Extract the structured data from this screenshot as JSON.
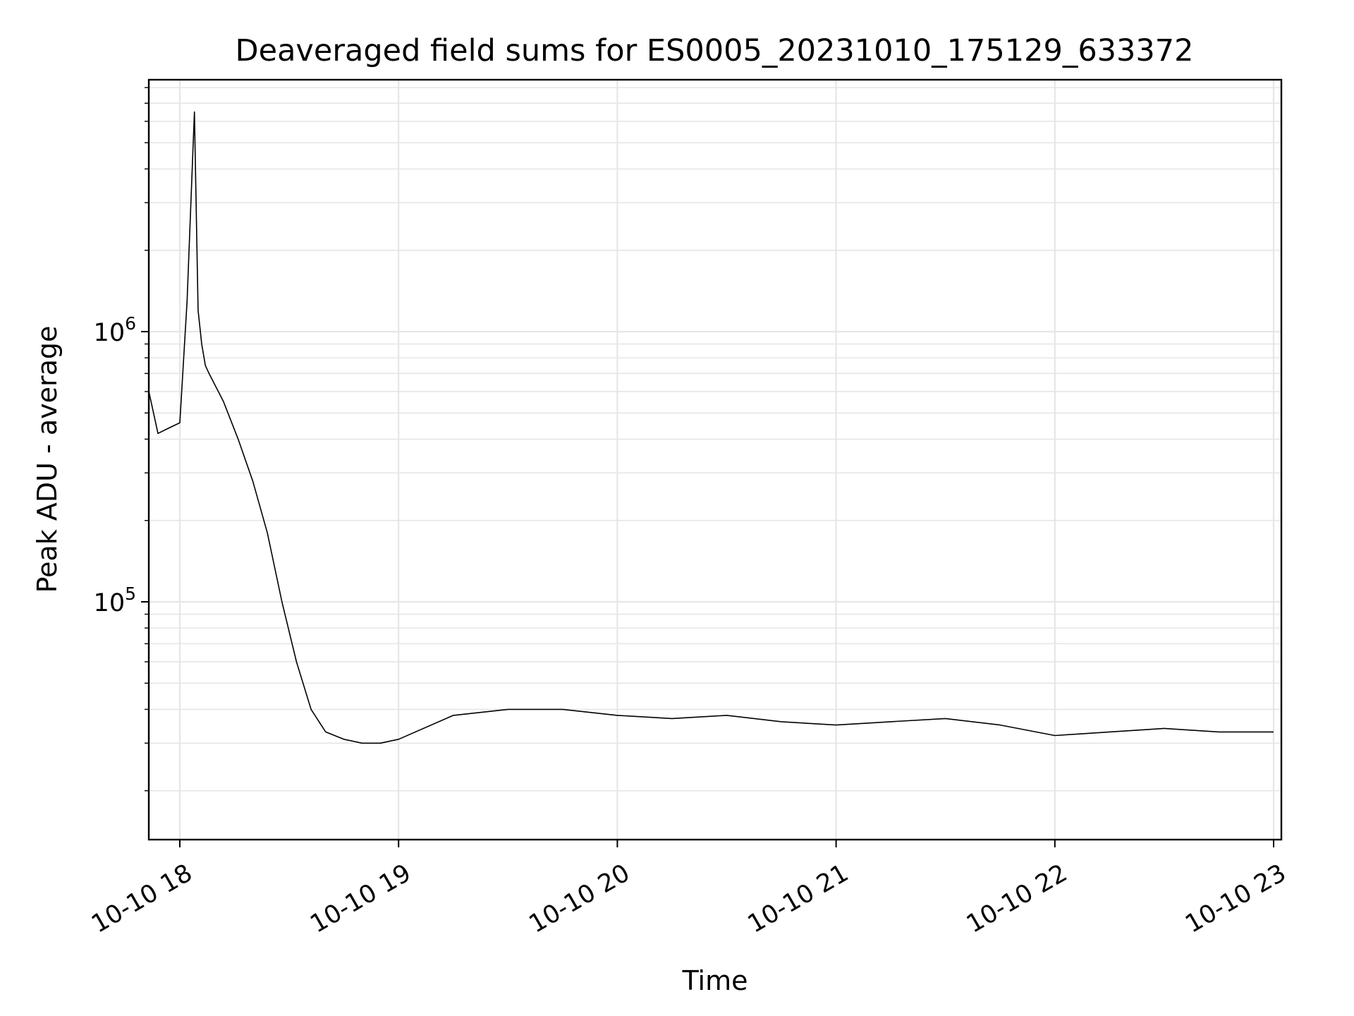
{
  "chart_data": {
    "type": "line",
    "title": "Deaveraged field sums for ES0005_20231010_175129_633372",
    "xlabel": "Time",
    "ylabel": "Peak ADU - average",
    "yscale": "log",
    "ylim": [
      15000,
      8500000
    ],
    "xlim": [
      "2023-10-10 17:51:29",
      "2023-10-11 23:01:00"
    ],
    "grid": true,
    "x_ticks": [
      {
        "value": "2023-10-10 18:00",
        "label": "10-10 18"
      },
      {
        "value": "2023-10-10 19:00",
        "label": "10-10 19"
      },
      {
        "value": "2023-10-10 20:00",
        "label": "10-10 20"
      },
      {
        "value": "2023-10-10 21:00",
        "label": "10-10 21"
      },
      {
        "value": "2023-10-10 22:00",
        "label": "10-10 22"
      },
      {
        "value": "2023-10-10 23:00",
        "label": "10-10 23"
      }
    ],
    "y_ticks": [
      {
        "value": 100000,
        "base": "10",
        "exp": "5"
      },
      {
        "value": 1000000,
        "base": "10",
        "exp": "6"
      }
    ],
    "line_color": "#000000",
    "series": [
      {
        "x": [
          "2023-10-10 17:51:30",
          "2023-10-10 17:54:00",
          "2023-10-10 17:57:00",
          "2023-10-10 18:00:00",
          "2023-10-10 18:02:00",
          "2023-10-10 18:04:00",
          "2023-10-10 18:05:00",
          "2023-10-10 18:06:00",
          "2023-10-10 18:07:00",
          "2023-10-10 18:08:00",
          "2023-10-10 18:12:00",
          "2023-10-10 18:16:00",
          "2023-10-10 18:20:00",
          "2023-10-10 18:24:00",
          "2023-10-10 18:28:00",
          "2023-10-10 18:32:00",
          "2023-10-10 18:36:00",
          "2023-10-10 18:40:00",
          "2023-10-10 18:45:00",
          "2023-10-10 18:50:00",
          "2023-10-10 18:55:00",
          "2023-10-10 19:00:00",
          "2023-10-10 19:15:00",
          "2023-10-10 19:30:00",
          "2023-10-10 19:45:00",
          "2023-10-10 20:00:00",
          "2023-10-10 20:15:00",
          "2023-10-10 20:30:00",
          "2023-10-10 20:45:00",
          "2023-10-10 21:00:00",
          "2023-10-10 21:15:00",
          "2023-10-10 21:30:00",
          "2023-10-10 21:45:00",
          "2023-10-10 22:00:00",
          "2023-10-10 22:15:00",
          "2023-10-10 22:30:00",
          "2023-10-10 22:45:00",
          "2023-10-10 23:00:00"
        ],
        "y": [
          600000,
          420000,
          440000,
          460000,
          1300000,
          6500000,
          1200000,
          900000,
          750000,
          700000,
          550000,
          400000,
          280000,
          180000,
          100000,
          60000,
          40000,
          33000,
          31000,
          30000,
          30000,
          31000,
          38000,
          40000,
          40000,
          38000,
          37000,
          38000,
          36000,
          35000,
          36000,
          37000,
          35000,
          32000,
          33000,
          34000,
          33000,
          33000
        ]
      }
    ]
  }
}
